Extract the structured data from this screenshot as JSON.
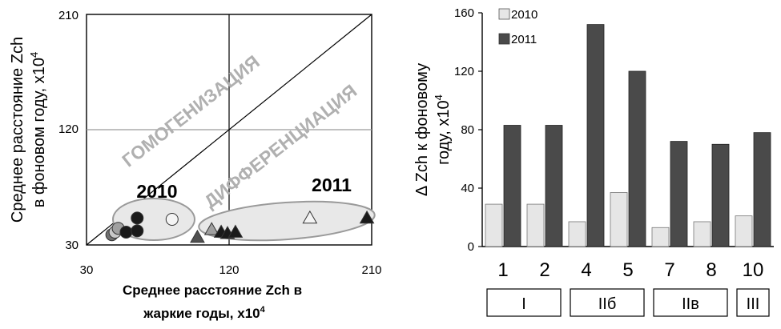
{
  "chart_data": [
    {
      "type": "scatter",
      "xlabel_line1": "Среднее расстояние Zch в",
      "xlabel_line2": "жаркие годы, x10",
      "xlabel_exp": "4",
      "ylabel_line1": "Среднее расстояние Zch",
      "ylabel_line2": "в фоновом году, x10",
      "ylabel_exp": "4",
      "xlim": [
        30,
        210
      ],
      "ylim": [
        30,
        210
      ],
      "xticks": [
        "30",
        "120",
        "210"
      ],
      "yticks": [
        "30",
        "120",
        "210"
      ],
      "annotations": {
        "homogenization": "ГОМОГЕНИЗАЦИЯ",
        "differentiation": "ДИФФЕРЕНЦИАЦИЯ",
        "label_2010": "2010",
        "label_2011": "2011"
      },
      "series": [
        {
          "name": "2010",
          "marker": "circle",
          "points": [
            {
              "x": 46,
              "y": 38,
              "fill": "#707070"
            },
            {
              "x": 48,
              "y": 40,
              "fill": "#c8c8c8"
            },
            {
              "x": 50,
              "y": 43,
              "fill": "#a0a0a0"
            },
            {
              "x": 55,
              "y": 40,
              "fill": "#1a1a1a"
            },
            {
              "x": 62,
              "y": 41,
              "fill": "#1a1a1a"
            },
            {
              "x": 62,
              "y": 51,
              "fill": "#1a1a1a"
            },
            {
              "x": 84,
              "y": 50,
              "fill": "#f4f4f4"
            }
          ]
        },
        {
          "name": "2011",
          "marker": "triangle",
          "points": [
            {
              "x": 100,
              "y": 36,
              "fill": "#505050"
            },
            {
              "x": 109,
              "y": 42,
              "fill": "#a0a0a0"
            },
            {
              "x": 115,
              "y": 40,
              "fill": "#1a1a1a"
            },
            {
              "x": 119,
              "y": 39,
              "fill": "#1a1a1a"
            },
            {
              "x": 124,
              "y": 40,
              "fill": "#1a1a1a"
            },
            {
              "x": 171,
              "y": 51,
              "fill": "#f4f4f4"
            },
            {
              "x": 207,
              "y": 51,
              "fill": "#1a1a1a"
            }
          ]
        }
      ]
    },
    {
      "type": "bar",
      "ylabel_line1": "Δ Zch к фоновому",
      "ylabel_line2": "году, x10",
      "ylabel_exp": "4",
      "ylim": [
        0,
        160
      ],
      "yticks": [
        "0",
        "40",
        "80",
        "120",
        "160"
      ],
      "categories": [
        "1",
        "2",
        "4",
        "5",
        "7",
        "8",
        "10"
      ],
      "series": [
        {
          "name": "2010",
          "color": "#e6e6e6",
          "values": [
            29,
            29,
            17,
            37,
            13,
            17,
            21
          ]
        },
        {
          "name": "2011",
          "color": "#4a4a4a",
          "values": [
            83,
            83,
            152,
            120,
            72,
            70,
            78
          ]
        }
      ],
      "groups": [
        {
          "label": "I",
          "from": 0,
          "to": 1
        },
        {
          "label": "IIб",
          "from": 2,
          "to": 3
        },
        {
          "label": "IIв",
          "from": 4,
          "to": 5
        },
        {
          "label": "III",
          "from": 6,
          "to": 6
        }
      ]
    }
  ]
}
